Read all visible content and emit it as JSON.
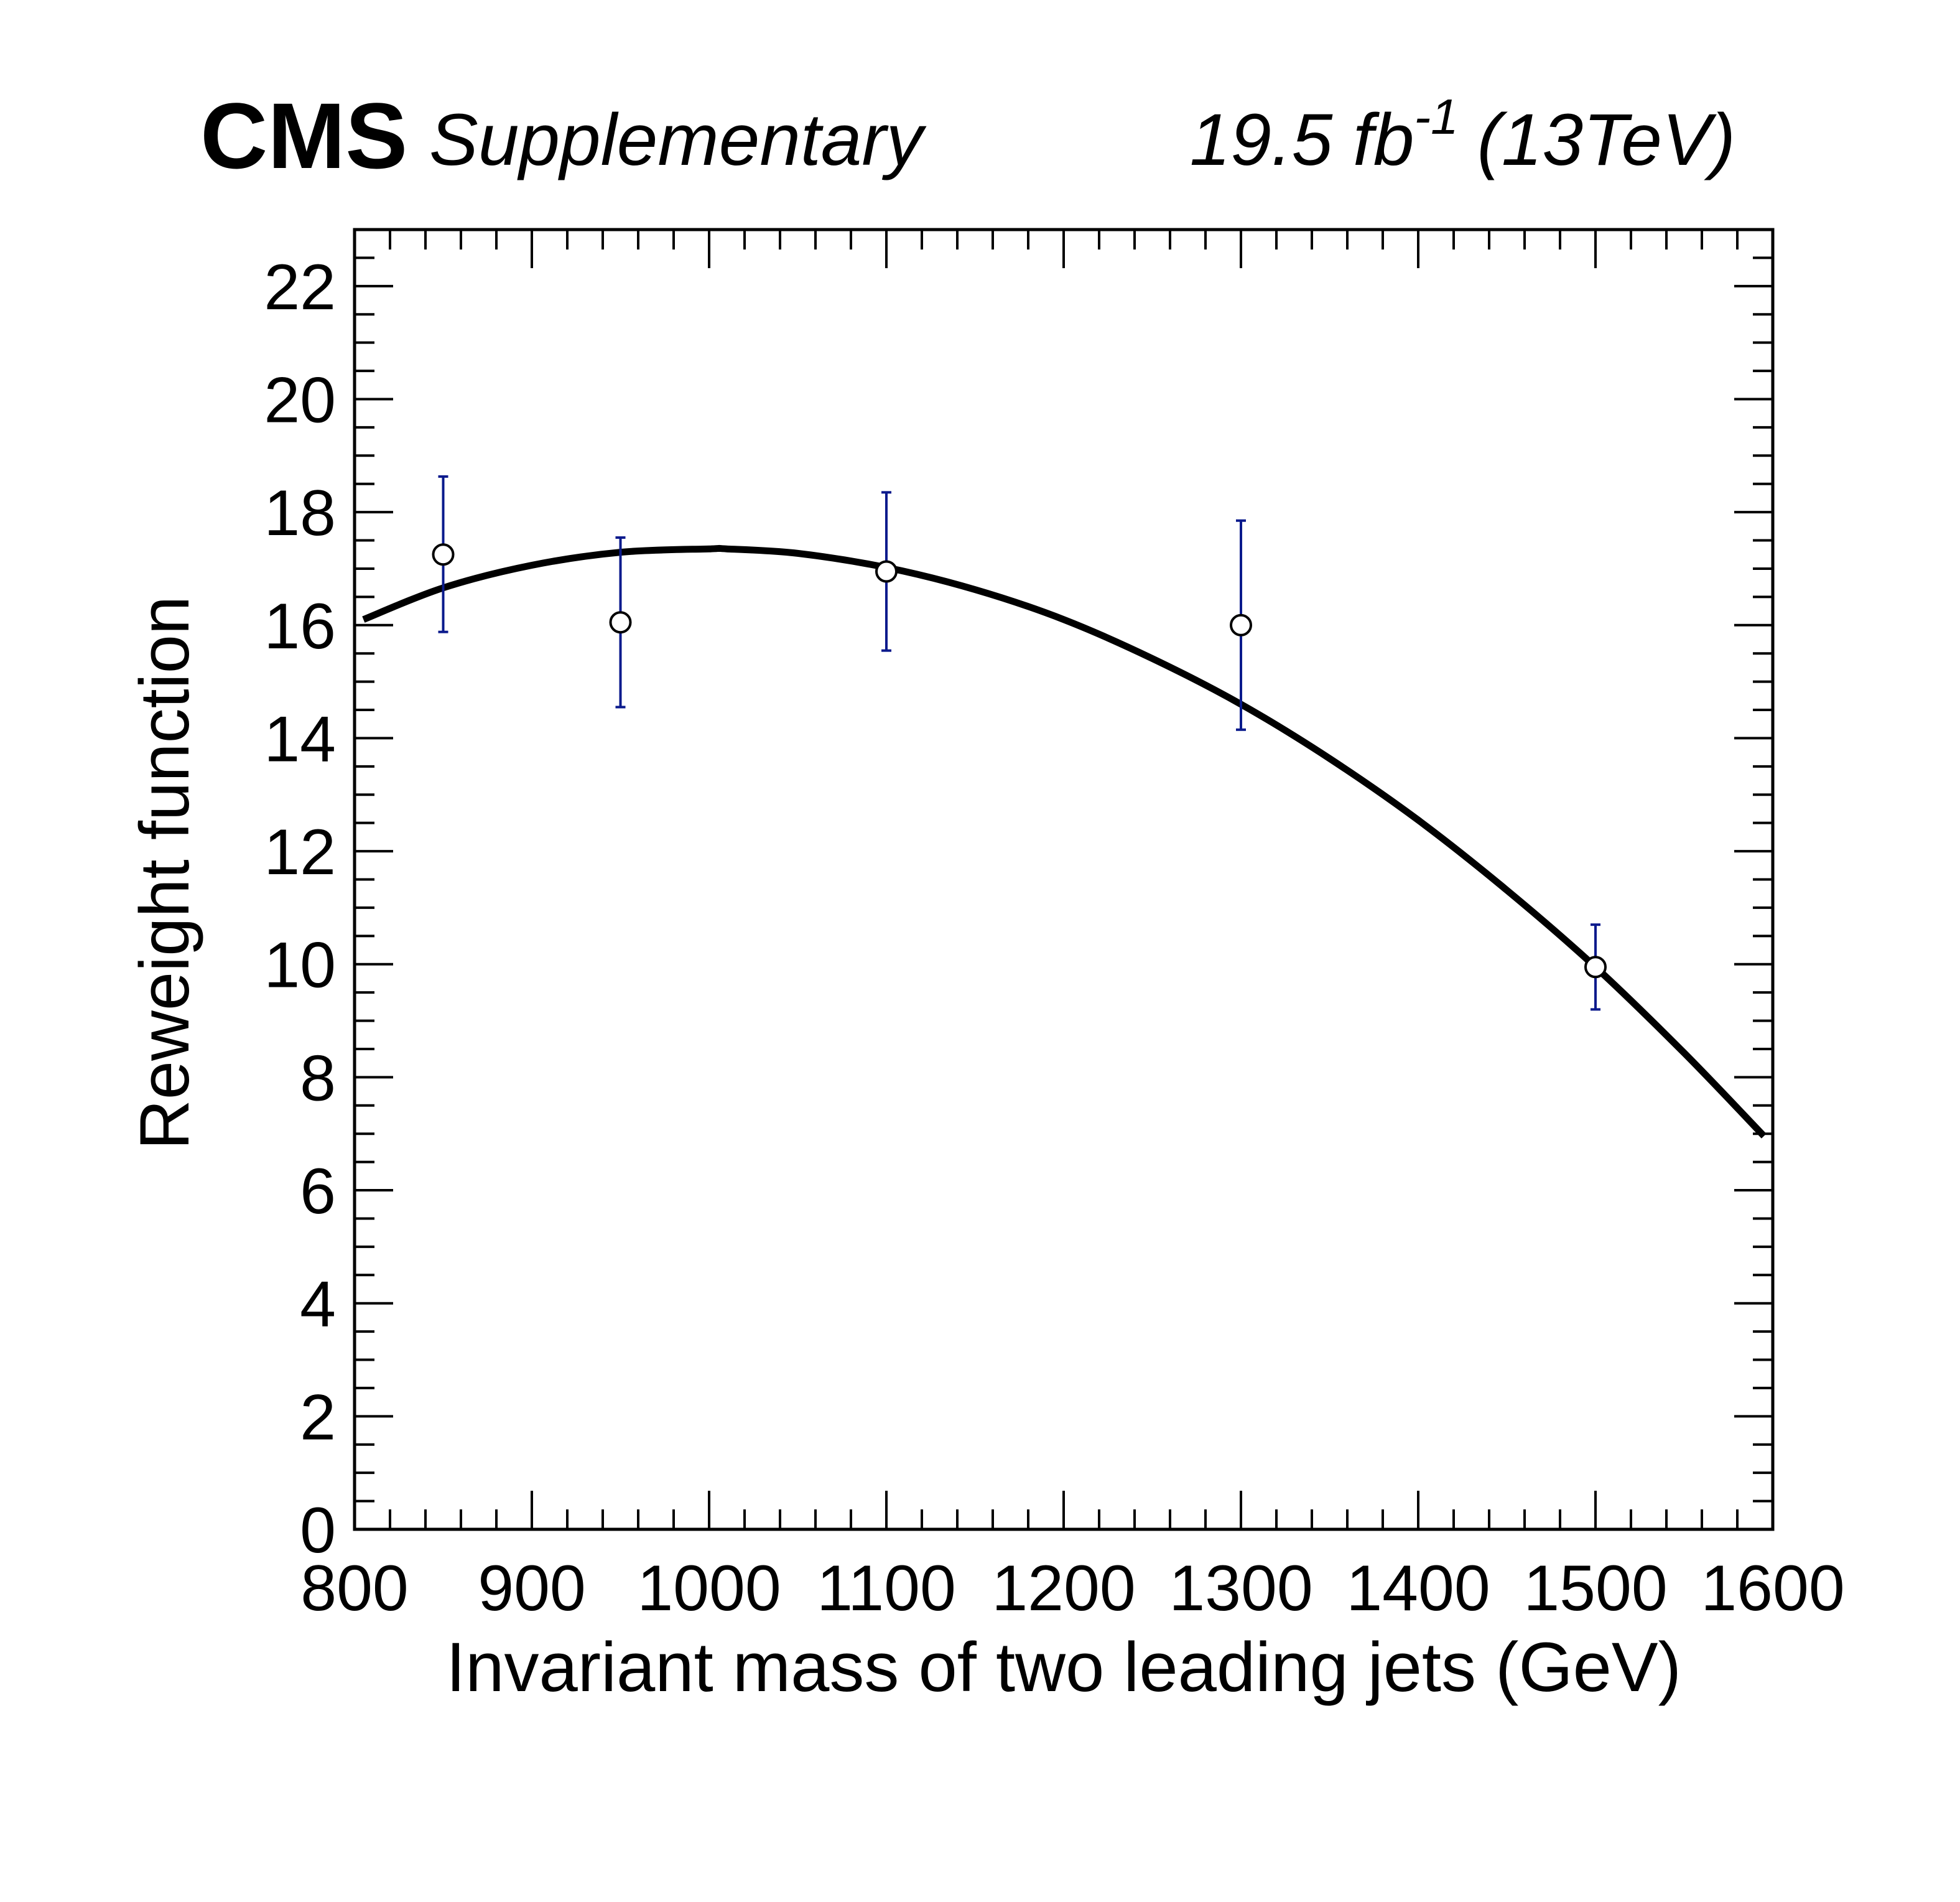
{
  "header": {
    "experiment": "CMS",
    "status": "Supplementary",
    "lumi_value": "19.5 fb",
    "lumi_exponent": "-1",
    "energy": "(13TeV)"
  },
  "chart_data": {
    "type": "scatter",
    "xlabel": "Invariant mass of two leading jets (GeV)",
    "ylabel": "Reweight function",
    "xlim": [
      800,
      1600
    ],
    "ylim": [
      0,
      23
    ],
    "x_ticks": [
      800,
      900,
      1000,
      1100,
      1200,
      1300,
      1400,
      1500,
      1600
    ],
    "x_tick_labels": [
      "800",
      "900",
      "1000",
      "1100",
      "1200",
      "1300",
      "1400",
      "1500",
      "1600"
    ],
    "x_minor_step": 20,
    "y_ticks": [
      0,
      2,
      4,
      6,
      8,
      10,
      12,
      14,
      16,
      18,
      20,
      22
    ],
    "y_tick_labels": [
      "0",
      "2",
      "4",
      "6",
      "8",
      "10",
      "12",
      "14",
      "16",
      "18",
      "20",
      "22"
    ],
    "y_minor_step": 0.5,
    "grid": false,
    "series": [
      {
        "kind": "points_with_errors",
        "marker": "open-circle",
        "error_color": "#0a1a8c",
        "points": [
          {
            "x": 850,
            "y": 17.25,
            "y_low": 15.88,
            "y_high": 18.63
          },
          {
            "x": 950,
            "y": 16.05,
            "y_low": 14.55,
            "y_high": 17.55
          },
          {
            "x": 1100,
            "y": 16.95,
            "y_low": 15.55,
            "y_high": 18.35
          },
          {
            "x": 1300,
            "y": 16.0,
            "y_low": 14.15,
            "y_high": 17.85
          },
          {
            "x": 1500,
            "y": 9.95,
            "y_low": 9.2,
            "y_high": 10.7
          }
        ]
      },
      {
        "kind": "fit_curve",
        "color": "#000000",
        "x": [
          805,
          850,
          900,
          950,
          1000,
          1010,
          1050,
          1100,
          1150,
          1200,
          1250,
          1300,
          1350,
          1400,
          1450,
          1500,
          1550,
          1595
        ],
        "y": [
          16.1,
          16.66,
          17.06,
          17.29,
          17.35,
          17.35,
          17.27,
          17.02,
          16.63,
          16.1,
          15.41,
          14.6,
          13.64,
          12.55,
          11.31,
          9.95,
          8.43,
          6.96
        ]
      }
    ]
  }
}
